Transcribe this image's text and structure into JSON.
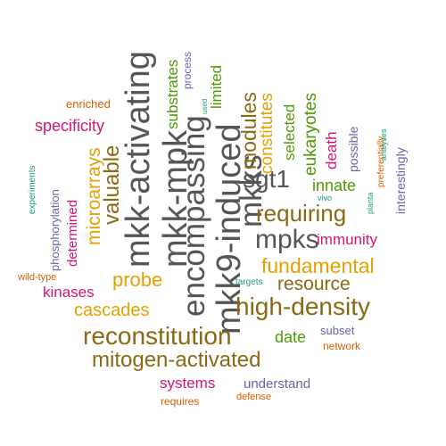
{
  "words": [
    {
      "text": "mkk-activating",
      "color": "#555555",
      "rotated": true
    },
    {
      "text": "mkk-mpk",
      "color": "#555555",
      "rotated": true
    },
    {
      "text": "encompassing",
      "color": "#555555",
      "rotated": true
    },
    {
      "text": "mkk9-induced",
      "color": "#555555",
      "rotated": true
    },
    {
      "text": "mkks",
      "color": "#555555",
      "rotated": true
    },
    {
      "text": "mpks",
      "color": "#555555",
      "rotated": false
    },
    {
      "text": "sgt1",
      "color": "#555555",
      "rotated": false
    },
    {
      "text": "reconstitution",
      "color": "#8B6914",
      "rotated": false
    },
    {
      "text": "high-density",
      "color": "#8B6914",
      "rotated": false
    },
    {
      "text": "mitogen-activated",
      "color": "#8B6914",
      "rotated": false
    },
    {
      "text": "requiring",
      "color": "#8B6914",
      "rotated": false
    },
    {
      "text": "modules",
      "color": "#8B6914",
      "rotated": true
    },
    {
      "text": "valuable",
      "color": "#8B6914",
      "rotated": true
    },
    {
      "text": "resource",
      "color": "#8B6914",
      "rotated": false
    },
    {
      "text": "fundamental",
      "color": "#E6A000",
      "rotated": false
    },
    {
      "text": "probe",
      "color": "#E6A000",
      "rotated": false
    },
    {
      "text": "cascades",
      "color": "#E6A000",
      "rotated": false
    },
    {
      "text": "microarrays",
      "color": "#E6A000",
      "rotated": true
    },
    {
      "text": "constitutes",
      "color": "#E6A000",
      "rotated": true
    },
    {
      "text": "substrates",
      "color": "#4E9A06",
      "rotated": true
    },
    {
      "text": "limited",
      "color": "#4E9A06",
      "rotated": true
    },
    {
      "text": "selected",
      "color": "#4E9A06",
      "rotated": true
    },
    {
      "text": "eukaryotes",
      "color": "#4E9A06",
      "rotated": true
    },
    {
      "text": "innate",
      "color": "#4E9A06",
      "rotated": false
    },
    {
      "text": "date",
      "color": "#4E9A06",
      "rotated": false
    },
    {
      "text": "specificity",
      "color": "#D6166E",
      "rotated": false
    },
    {
      "text": "determined",
      "color": "#D6166E",
      "rotated": true
    },
    {
      "text": "death",
      "color": "#D6166E",
      "rotated": true
    },
    {
      "text": "immunity",
      "color": "#D6166E",
      "rotated": false
    },
    {
      "text": "kinases",
      "color": "#D6166E",
      "rotated": false
    },
    {
      "text": "systems",
      "color": "#D6166E",
      "rotated": false
    },
    {
      "text": "phosphorylation",
      "color": "#6B62A8",
      "rotated": true
    },
    {
      "text": "process",
      "color": "#6B62A8",
      "rotated": true
    },
    {
      "text": "possible",
      "color": "#6B62A8",
      "rotated": true
    },
    {
      "text": "interestingly",
      "color": "#6B62A8",
      "rotated": true
    },
    {
      "text": "understand",
      "color": "#6B62A8",
      "rotated": false
    },
    {
      "text": "subset",
      "color": "#6B62A8",
      "rotated": false
    },
    {
      "text": "enriched",
      "color": "#D95F02",
      "rotated": false
    },
    {
      "text": "preferentially",
      "color": "#D95F02",
      "rotated": true
    },
    {
      "text": "network",
      "color": "#D95F02",
      "rotated": false
    },
    {
      "text": "defense",
      "color": "#D95F02",
      "rotated": false
    },
    {
      "text": "requires",
      "color": "#D95F02",
      "rotated": false
    },
    {
      "text": "wild-type",
      "color": "#D95F02",
      "rotated": false
    },
    {
      "text": "experiments",
      "color": "#1B9E77",
      "rotated": true
    },
    {
      "text": "used",
      "color": "#1B9E77",
      "rotated": true
    },
    {
      "text": "vivo",
      "color": "#1B9E77",
      "rotated": false
    },
    {
      "text": "planta",
      "color": "#1B9E77",
      "rotated": true
    },
    {
      "text": "analyses",
      "color": "#1B9E77",
      "rotated": true
    },
    {
      "text": "targets",
      "color": "#1B9E77",
      "rotated": false
    }
  ]
}
